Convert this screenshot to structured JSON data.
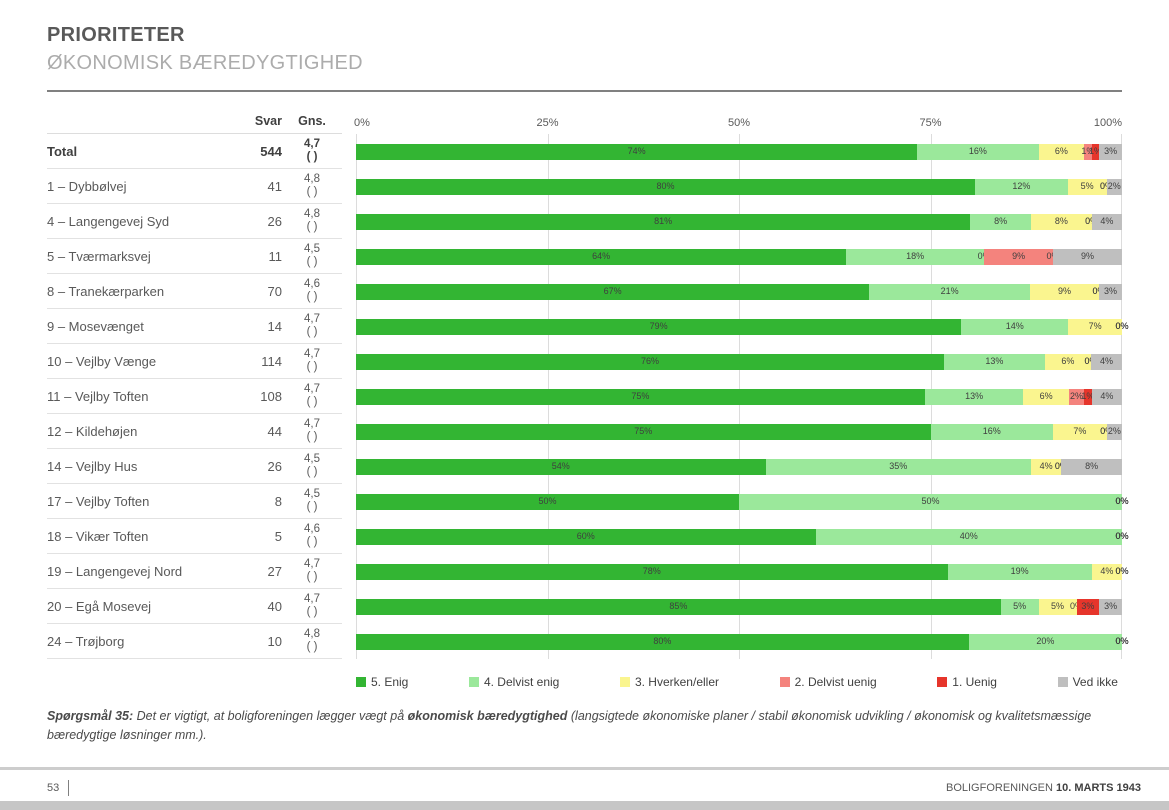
{
  "header": {
    "title": "PRIORITETER",
    "subtitle": "ØKONOMISK BÆREDYGTIGHED"
  },
  "columns": {
    "svar": "Svar",
    "gns": "Gns."
  },
  "axis_ticks": [
    "0%",
    "25%",
    "50%",
    "75%",
    "100%"
  ],
  "legend": [
    {
      "label": "5. Enig",
      "color": "#33B533"
    },
    {
      "label": "4. Delvist enig",
      "color": "#9BE89B"
    },
    {
      "label": "3. Hverken/eller",
      "color": "#FAF58F"
    },
    {
      "label": "2. Delvist uenig",
      "color": "#F4837D"
    },
    {
      "label": "1. Uenig",
      "color": "#E6352B"
    },
    {
      "label": "Ved ikke",
      "color": "#BFBFBF"
    }
  ],
  "chart_data": {
    "type": "bar",
    "orientation": "horizontal",
    "stacked": true,
    "x_range": [
      0,
      100
    ],
    "grid": true,
    "series": [
      "5. Enig",
      "4. Delvist enig",
      "3. Hverken/eller",
      "2. Delvist uenig",
      "1. Uenig",
      "Ved ikke"
    ],
    "colors": [
      "#33B533",
      "#9BE89B",
      "#FAF58F",
      "#F4837D",
      "#E6352B",
      "#BFBFBF"
    ],
    "rows": [
      {
        "name": "Total",
        "svar": "544",
        "gns": "4,7",
        "gns_note": "( )",
        "bold": true,
        "values": [
          74,
          16,
          6,
          1,
          1,
          3
        ]
      },
      {
        "name": "1 – Dybbølvej",
        "svar": "41",
        "gns": "4,8",
        "gns_note": "( )",
        "bold": false,
        "values": [
          80,
          12,
          5,
          0,
          0,
          2
        ]
      },
      {
        "name": "4 – Langengevej Syd",
        "svar": "26",
        "gns": "4,8",
        "gns_note": "( )",
        "bold": false,
        "values": [
          81,
          8,
          8,
          0,
          0,
          4
        ]
      },
      {
        "name": "5 – Tværmarksvej",
        "svar": "11",
        "gns": "4,5",
        "gns_note": "( )",
        "bold": false,
        "values": [
          64,
          18,
          0,
          9,
          0,
          9
        ]
      },
      {
        "name": "8 – Tranekærparken",
        "svar": "70",
        "gns": "4,6",
        "gns_note": "( )",
        "bold": false,
        "values": [
          67,
          21,
          9,
          0,
          0,
          3
        ]
      },
      {
        "name": "9 – Mosevænget",
        "svar": "14",
        "gns": "4,7",
        "gns_note": "( )",
        "bold": false,
        "values": [
          79,
          14,
          7,
          0,
          0,
          0
        ]
      },
      {
        "name": "10 – Vejlby Vænge",
        "svar": "114",
        "gns": "4,7",
        "gns_note": "( )",
        "bold": false,
        "values": [
          76,
          13,
          6,
          0,
          0,
          4
        ]
      },
      {
        "name": "11 – Vejlby Toften",
        "svar": "108",
        "gns": "4,7",
        "gns_note": "( )",
        "bold": false,
        "values": [
          75,
          13,
          6,
          2,
          1,
          4
        ]
      },
      {
        "name": "12 – Kildehøjen",
        "svar": "44",
        "gns": "4,7",
        "gns_note": "( )",
        "bold": false,
        "values": [
          75,
          16,
          7,
          0,
          0,
          2
        ]
      },
      {
        "name": "14 – Vejlby Hus",
        "svar": "26",
        "gns": "4,5",
        "gns_note": "( )",
        "bold": false,
        "values": [
          54,
          35,
          4,
          0,
          0,
          8
        ]
      },
      {
        "name": "17 – Vejlby Toften",
        "svar": "8",
        "gns": "4,5",
        "gns_note": "( )",
        "bold": false,
        "values": [
          50,
          50,
          0,
          0,
          0,
          0
        ]
      },
      {
        "name": "18 – Vikær Toften",
        "svar": "5",
        "gns": "4,6",
        "gns_note": "( )",
        "bold": false,
        "values": [
          60,
          40,
          0,
          0,
          0,
          0
        ]
      },
      {
        "name": "19 – Langengevej Nord",
        "svar": "27",
        "gns": "4,7",
        "gns_note": "( )",
        "bold": false,
        "values": [
          78,
          19,
          4,
          0,
          0,
          0
        ]
      },
      {
        "name": "20 – Egå Mosevej",
        "svar": "40",
        "gns": "4,7",
        "gns_note": "( )",
        "bold": false,
        "values": [
          85,
          5,
          5,
          0,
          3,
          3
        ]
      },
      {
        "name": "24 – Trøjborg",
        "svar": "10",
        "gns": "4,8",
        "gns_note": "( )",
        "bold": false,
        "values": [
          80,
          20,
          0,
          0,
          0,
          0
        ]
      }
    ]
  },
  "footnote": {
    "label": "Spørgsmål 35:",
    "text_before": "Det er vigtigt, at boligforeningen lægger vægt på",
    "bold_term": "økonomisk bæredygtighed",
    "text_after": "(langsigtede økonomiske planer / stabil økonomisk udvikling / økonomisk og kvalitetsmæssige bæredygtige løsninger mm.)."
  },
  "footer": {
    "page": "53",
    "brand": "BOLIGFORENINGEN",
    "date": "10. MARTS 1943"
  }
}
